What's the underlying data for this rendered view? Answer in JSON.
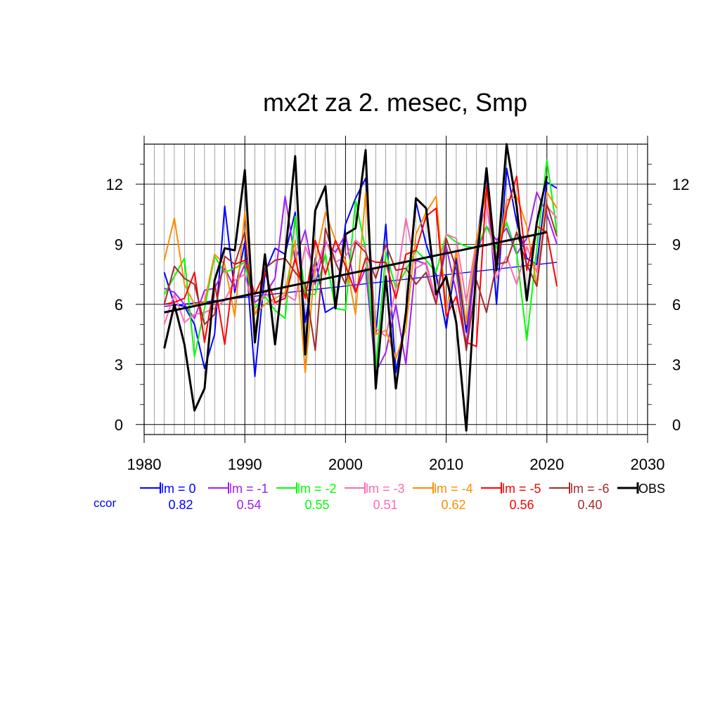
{
  "chart_data": {
    "type": "line",
    "title": "mx2t za 2. mesec, Smp",
    "xlabel": "",
    "ylabel": "",
    "xlim": [
      1980,
      2030
    ],
    "ylim": [
      -0.5,
      14.0
    ],
    "x_ticks": [
      1980,
      1990,
      2000,
      2010,
      2020,
      2030
    ],
    "x_tick_labels": [
      "1980",
      "1990",
      "2000",
      "2010",
      "2020",
      "2030"
    ],
    "y_ticks": [
      0,
      3,
      6,
      9,
      12
    ],
    "y_tick_labels": [
      "0",
      "3",
      "6",
      "9",
      "12"
    ],
    "grid": true,
    "legend_position": "bottom",
    "ccor_label": "ccor",
    "x": [
      1982,
      1983,
      1984,
      1985,
      1986,
      1987,
      1988,
      1989,
      1990,
      1991,
      1992,
      1993,
      1994,
      1995,
      1996,
      1997,
      1998,
      1999,
      2000,
      2001,
      2002,
      2003,
      2004,
      2005,
      2006,
      2007,
      2008,
      2009,
      2010,
      2011,
      2012,
      2013,
      2014,
      2015,
      2016,
      2017,
      2018,
      2019,
      2020,
      2021
    ],
    "series": [
      {
        "name": "lm = 0",
        "color": "#0000ff",
        "ccor": "0.82",
        "width": 2,
        "values": [
          7.6,
          6.0,
          5.9,
          5.0,
          2.8,
          4.5,
          10.9,
          6.6,
          9.1,
          2.4,
          7.6,
          8.8,
          8.5,
          10.6,
          5.1,
          8.3,
          5.6,
          5.9,
          10.0,
          11.3,
          12.3,
          4.5,
          10.0,
          2.6,
          5.4,
          11.1,
          9.0,
          7.5,
          4.8,
          8.3,
          4.6,
          9.0,
          12.5,
          6.0,
          12.8,
          10.1,
          8.3,
          8.0,
          12.1,
          11.8
        ],
        "trend": [
          [
            1982,
            5.9
          ],
          [
            2021,
            8.1
          ]
        ],
        "trend_width": 1.3
      },
      {
        "name": "lm = -1",
        "color": "#a020f0",
        "ccor": "0.54",
        "width": 2,
        "values": [
          6.8,
          6.6,
          6.0,
          5.3,
          6.7,
          6.8,
          7.8,
          6.8,
          8.0,
          6.1,
          6.5,
          7.3,
          11.4,
          8.2,
          9.7,
          7.0,
          9.1,
          8.6,
          9.5,
          6.6,
          7.8,
          2.6,
          3.6,
          6.0,
          3.0,
          8.2,
          8.0,
          6.2,
          8.9,
          6.6,
          3.8,
          8.6,
          9.9,
          9.2,
          9.8,
          8.5,
          9.3,
          11.6,
          10.5,
          9.0
        ]
      },
      {
        "name": "lm = -2",
        "color": "#00ff00",
        "ccor": "0.55",
        "width": 2,
        "values": [
          6.5,
          7.4,
          8.3,
          3.4,
          5.8,
          8.4,
          7.6,
          7.8,
          8.1,
          5.8,
          6.4,
          5.7,
          5.3,
          10.4,
          6.5,
          6.5,
          8.5,
          5.8,
          5.7,
          11.2,
          8.7,
          2.8,
          8.6,
          6.8,
          7.7,
          8.7,
          8.2,
          7.6,
          9.5,
          9.1,
          8.9,
          8.8,
          9.9,
          8.8,
          10.1,
          8.6,
          4.2,
          8.8,
          13.2,
          9.6
        ]
      },
      {
        "name": "lm = -3",
        "color": "#ff69b4",
        "ccor": "0.51",
        "width": 2,
        "values": [
          5.0,
          6.5,
          5.1,
          5.5,
          5.6,
          5.8,
          6.2,
          7.2,
          7.5,
          5.5,
          6.6,
          6.0,
          6.5,
          6.2,
          8.9,
          7.6,
          9.2,
          8.1,
          8.4,
          9.2,
          8.8,
          4.8,
          4.4,
          6.8,
          10.3,
          7.8,
          8.1,
          6.2,
          9.5,
          9.3,
          6.1,
          9.2,
          11.0,
          7.3,
          8.4,
          7.0,
          8.9,
          7.6,
          10.9,
          10.3
        ]
      },
      {
        "name": "lm = -4",
        "color": "#ff8c00",
        "ccor": "0.62",
        "width": 2,
        "values": [
          8.2,
          10.3,
          7.0,
          6.0,
          6.1,
          8.5,
          8.0,
          5.4,
          10.6,
          5.5,
          6.0,
          6.3,
          6.6,
          9.2,
          2.6,
          8.1,
          10.6,
          9.2,
          8.2,
          5.5,
          11.6,
          4.5,
          4.7,
          3.3,
          4.8,
          9.5,
          10.6,
          11.4,
          5.6,
          8.7,
          5.0,
          9.2,
          11.7,
          8.0,
          11.2,
          11.4,
          9.9,
          6.9,
          11.6,
          10.8
        ]
      },
      {
        "name": "lm = -5",
        "color": "#ff0000",
        "ccor": "0.56",
        "width": 2,
        "values": [
          6.0,
          6.1,
          6.3,
          7.6,
          4.1,
          7.1,
          4.0,
          8.0,
          8.2,
          6.5,
          7.6,
          6.1,
          6.3,
          8.3,
          6.3,
          9.2,
          7.5,
          9.2,
          7.9,
          6.6,
          8.3,
          8.1,
          8.1,
          6.3,
          8.5,
          8.7,
          10.4,
          10.8,
          5.4,
          6.4,
          4.1,
          3.9,
          11.9,
          7.8,
          10.7,
          12.4,
          7.7,
          9.9,
          9.6,
          6.9
        ]
      },
      {
        "name": "lm = -6",
        "color": "#a52a2a",
        "ccor": "0.40",
        "width": 2,
        "values": [
          6.0,
          7.9,
          7.3,
          7.0,
          5.0,
          5.5,
          8.4,
          8.0,
          9.6,
          4.6,
          7.8,
          8.2,
          8.3,
          7.6,
          7.0,
          3.7,
          9.8,
          8.1,
          7.0,
          9.1,
          8.6,
          7.3,
          9.0,
          7.7,
          7.8,
          7.0,
          7.6,
          6.0,
          9.3,
          7.8,
          3.7,
          7.2,
          5.6,
          8.0,
          8.1,
          9.6,
          8.0,
          6.9,
          11.0,
          9.4
        ]
      },
      {
        "name": "OBS",
        "color": "#000000",
        "ccor": "",
        "width": 3,
        "values": [
          3.8,
          6.0,
          4.0,
          0.7,
          1.8,
          7.2,
          8.8,
          8.7,
          12.7,
          4.1,
          8.5,
          4.0,
          8.4,
          13.4,
          3.5,
          10.7,
          11.9,
          5.8,
          9.5,
          9.8,
          13.7,
          1.8,
          7.4,
          1.8,
          5.6,
          11.3,
          10.8,
          6.5,
          7.4,
          5.1,
          -0.3,
          8.0,
          12.8,
          7.7,
          14.0,
          10.9,
          6.2,
          10.1,
          12.4,
          null
        ],
        "trend": [
          [
            1982,
            5.6
          ],
          [
            2020,
            9.6
          ]
        ],
        "trend_width": 3
      }
    ]
  }
}
